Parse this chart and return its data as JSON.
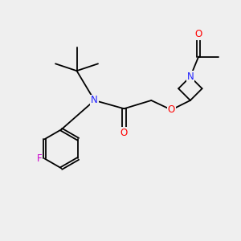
{
  "bg_color": "#efefef",
  "atom_colors": {
    "C": "#000000",
    "N": "#2020ff",
    "O": "#ff0000",
    "F": "#cc00cc"
  },
  "figsize": [
    3.0,
    3.0
  ],
  "dpi": 100
}
